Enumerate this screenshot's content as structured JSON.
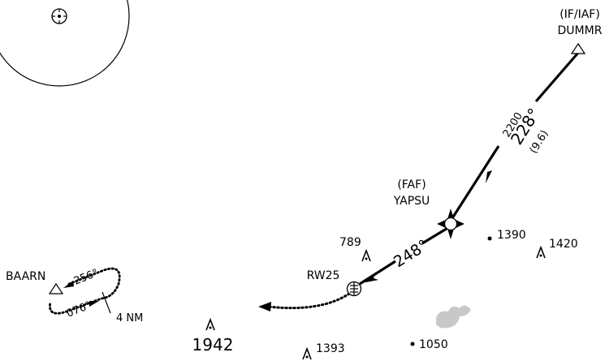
{
  "waypoints": {
    "dummr": {
      "role": "(IF/IAF)",
      "name": "DUMMR"
    },
    "yapsu": {
      "role": "(FAF)",
      "name": "YAPSU"
    },
    "rw25": {
      "name": "RW25"
    },
    "baarn": {
      "name": "BAARN"
    }
  },
  "legs": {
    "dummr_yapsu": {
      "altitude": "2200",
      "course": "228°",
      "distance": "(9.6)"
    },
    "yapsu_rw25": {
      "course": "248°"
    }
  },
  "holding": {
    "inbound": "076°",
    "outbound": "256°",
    "leg_length": "4 NM"
  },
  "spot_elevations": {
    "e789": "789",
    "e1390": "1390",
    "e1420": "1420",
    "e1942": "1942",
    "e1393": "1393",
    "e1050": "1050"
  },
  "colors": {
    "ink": "#000000",
    "terrain_shading": "#c8c8c8",
    "background": "#ffffff"
  },
  "icons": [
    "navaid-icon",
    "triangle-waypoint-icon",
    "faf-star-icon",
    "runway-fix-icon",
    "obstacle-icon",
    "spot-elevation-dot-icon"
  ]
}
